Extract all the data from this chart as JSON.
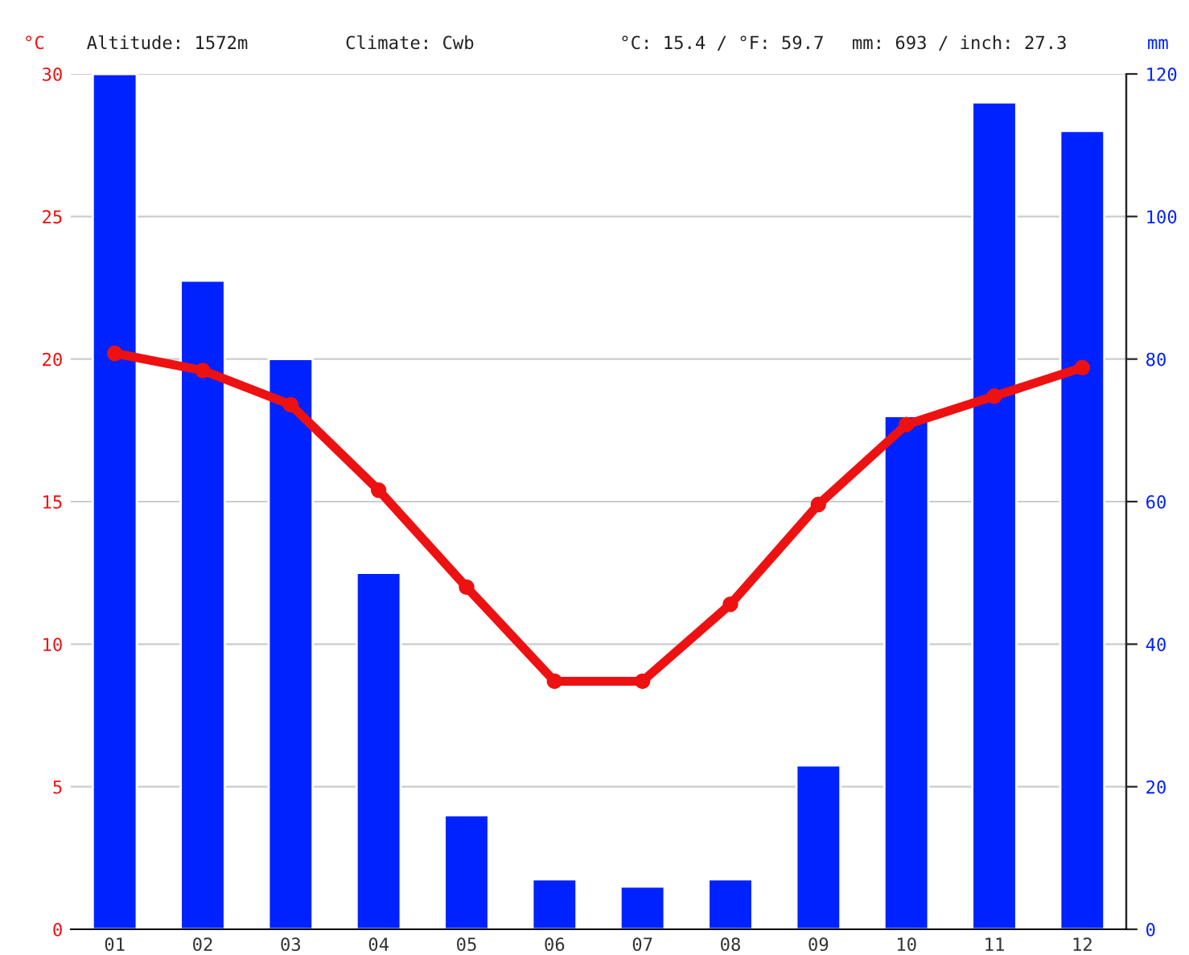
{
  "chart_data": {
    "type": "bar",
    "categories": [
      "01",
      "02",
      "03",
      "04",
      "05",
      "06",
      "07",
      "08",
      "09",
      "10",
      "11",
      "12"
    ],
    "ylabel": "°C",
    "y2label": "mm",
    "annotations": [
      "Altitude: 1572m",
      "Climate: Cwb",
      "°C: 15.4 / °F: 59.7",
      "mm: 693 / inch: 27.3"
    ],
    "series": [
      {
        "axis": "y2",
        "color": "#0022ff",
        "values": [
          120,
          91,
          80,
          50,
          16,
          7,
          6,
          7,
          23,
          72,
          116,
          112
        ]
      },
      {
        "type": "line",
        "axis": "y",
        "color": "#ee1111",
        "marker": "circle",
        "line_style": "solid",
        "values": [
          20.2,
          19.6,
          18.4,
          15.4,
          12.0,
          8.7,
          8.7,
          11.4,
          14.9,
          17.7,
          18.7,
          19.7
        ]
      }
    ],
    "ylim": [
      0,
      30
    ],
    "yticks": [
      0,
      5,
      10,
      15,
      20,
      25,
      30
    ],
    "y2lim": [
      0,
      120
    ],
    "y2ticks": [
      0,
      20,
      40,
      60,
      80,
      100,
      120
    ],
    "grid": "y",
    "legend": false
  }
}
